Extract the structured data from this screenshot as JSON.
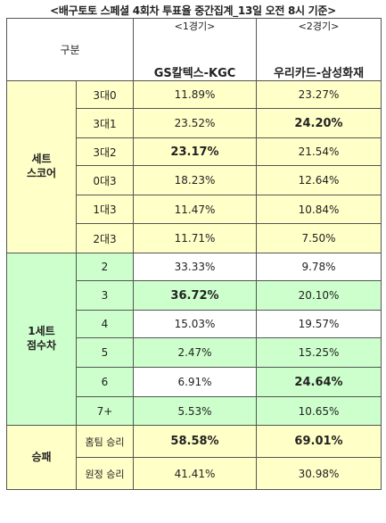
{
  "title": "<배구토토 스페셜 4회차 투표율 중간집계_13일 오전 8시 기준>",
  "header": {
    "gubun": "구분",
    "match1_num": "<1경기>",
    "match1_name": "GS칼텍스-KGC",
    "match2_num": "<2경기>",
    "match2_name": "우리카드-삼성화재"
  },
  "sections": [
    {
      "category": "세트\n스코어",
      "rows": [
        {
          "label": "3대0",
          "m1": "11.89%",
          "m2": "23.27%"
        },
        {
          "label": "3대1",
          "m1": "23.52%",
          "m2": "24.20%"
        },
        {
          "label": "3대2",
          "m1": "23.17%",
          "m2": "21.54%"
        },
        {
          "label": "0대3",
          "m1": "18.23%",
          "m2": "12.64%"
        },
        {
          "label": "1대3",
          "m1": "11.47%",
          "m2": "10.84%"
        },
        {
          "label": "2대3",
          "m1": "11.71%",
          "m2": "7.50%"
        }
      ]
    },
    {
      "category": "1세트\n점수차",
      "rows": [
        {
          "label": "2",
          "m1": "33.33%",
          "m2": "9.78%"
        },
        {
          "label": "3",
          "m1": "36.72%",
          "m2": "20.10%"
        },
        {
          "label": "4",
          "m1": "15.03%",
          "m2": "19.57%"
        },
        {
          "label": "5",
          "m1": "2.47%",
          "m2": "15.25%"
        },
        {
          "label": "6",
          "m1": "6.91%",
          "m2": "24.64%"
        },
        {
          "label": "7+",
          "m1": "5.53%",
          "m2": "10.65%"
        }
      ]
    },
    {
      "category": "승패",
      "rows": [
        {
          "label": "홈팀 승리",
          "m1": "58.58%",
          "m2": "69.01%"
        },
        {
          "label": "원정 승리",
          "m1": "41.41%",
          "m2": "30.98%"
        }
      ]
    }
  ]
}
